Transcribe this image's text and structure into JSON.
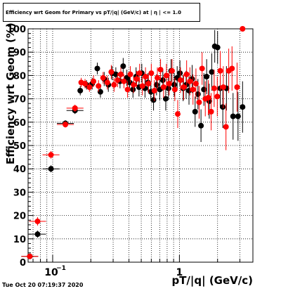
{
  "title": "Efficiency wrt Geom for Primary vs pT/|q| (GeV/c) at | η | <= 1.0",
  "timestamp": "Tue Oct 20 07:19:37 2020",
  "chart_data": {
    "type": "scatter",
    "title": "Efficiency wrt Geom for Primary vs pT/|q| (GeV/c) at | η | <= 1.0",
    "xlabel": "pT/|q| (GeV/c)",
    "ylabel": "Efficiency wrt Geom (%)",
    "xscale": "log",
    "xlim": [
      0.064,
      3.8
    ],
    "ylim": [
      0,
      100
    ],
    "xticklabels": [
      "10^-1",
      "1"
    ],
    "yticks": [
      0,
      10,
      20,
      30,
      40,
      50,
      60,
      70,
      80,
      90,
      100
    ],
    "grid": true,
    "colors": {
      "black_series": "#000000",
      "red_series": "#ff0000"
    },
    "series": [
      {
        "color": "black",
        "points": [
          {
            "x": 0.066,
            "y": 2.5,
            "err": 0.8
          },
          {
            "x": 0.076,
            "y": 12.0,
            "err": 1.5
          },
          {
            "x": 0.097,
            "y": 40.0,
            "err": 1.5
          },
          {
            "x": 0.126,
            "y": 59.5,
            "err": 1.3
          },
          {
            "x": 0.15,
            "y": 65.0,
            "err": 1.5
          },
          {
            "x": 0.165,
            "y": 73.5,
            "err": 2.0
          },
          {
            "x": 0.185,
            "y": 76.0,
            "err": 2.0
          },
          {
            "x": 0.205,
            "y": 76.5,
            "err": 2.5
          },
          {
            "x": 0.225,
            "y": 83.0,
            "err": 2.5
          },
          {
            "x": 0.238,
            "y": 73.0,
            "err": 2.5
          },
          {
            "x": 0.255,
            "y": 78.5,
            "err": 3.0
          },
          {
            "x": 0.275,
            "y": 76.0,
            "err": 3.0
          },
          {
            "x": 0.295,
            "y": 81.0,
            "err": 3.0
          },
          {
            "x": 0.315,
            "y": 80.5,
            "err": 3.0
          },
          {
            "x": 0.34,
            "y": 77.5,
            "err": 3.0
          },
          {
            "x": 0.36,
            "y": 84.0,
            "err": 3.5
          },
          {
            "x": 0.385,
            "y": 79.0,
            "err": 3.5
          },
          {
            "x": 0.405,
            "y": 77.0,
            "err": 3.5
          },
          {
            "x": 0.43,
            "y": 74.0,
            "err": 3.5
          },
          {
            "x": 0.455,
            "y": 79.5,
            "err": 4.0
          },
          {
            "x": 0.48,
            "y": 75.0,
            "err": 4.0
          },
          {
            "x": 0.505,
            "y": 81.0,
            "err": 4.0
          },
          {
            "x": 0.535,
            "y": 74.5,
            "err": 4.0
          },
          {
            "x": 0.565,
            "y": 77.0,
            "err": 4.0
          },
          {
            "x": 0.595,
            "y": 73.0,
            "err": 4.0
          },
          {
            "x": 0.625,
            "y": 69.5,
            "err": 4.5
          },
          {
            "x": 0.66,
            "y": 76.0,
            "err": 4.5
          },
          {
            "x": 0.7,
            "y": 74.0,
            "err": 4.5
          },
          {
            "x": 0.74,
            "y": 78.0,
            "err": 4.5
          },
          {
            "x": 0.78,
            "y": 70.0,
            "err": 5.0
          },
          {
            "x": 0.82,
            "y": 74.5,
            "err": 5.0
          },
          {
            "x": 0.86,
            "y": 82.0,
            "err": 5.0
          },
          {
            "x": 0.91,
            "y": 76.0,
            "err": 5.0
          },
          {
            "x": 0.96,
            "y": 79.0,
            "err": 5.0
          },
          {
            "x": 1.01,
            "y": 81.0,
            "err": 5.5
          },
          {
            "x": 1.07,
            "y": 74.5,
            "err": 5.5
          },
          {
            "x": 1.13,
            "y": 76.0,
            "err": 6.0
          },
          {
            "x": 1.19,
            "y": 73.5,
            "err": 6.0
          },
          {
            "x": 1.26,
            "y": 78.5,
            "err": 6.0
          },
          {
            "x": 1.33,
            "y": 64.5,
            "err": 6.5
          },
          {
            "x": 1.4,
            "y": 72.0,
            "err": 6.5
          },
          {
            "x": 1.48,
            "y": 58.5,
            "err": 7.0
          },
          {
            "x": 1.56,
            "y": 74.0,
            "err": 7.0
          },
          {
            "x": 1.64,
            "y": 79.5,
            "err": 7.5
          },
          {
            "x": 1.72,
            "y": 69.0,
            "err": 7.5
          },
          {
            "x": 1.8,
            "y": 81.5,
            "err": 8.0
          },
          {
            "x": 1.9,
            "y": 92.5,
            "err": 7.0
          },
          {
            "x": 2.0,
            "y": 92.0,
            "err": 7.0
          },
          {
            "x": 2.1,
            "y": 74.5,
            "err": 8.5
          },
          {
            "x": 2.2,
            "y": 66.5,
            "err": 9.0
          },
          {
            "x": 2.35,
            "y": 74.5,
            "err": 9.5
          },
          {
            "x": 2.65,
            "y": 62.5,
            "err": 10.0
          },
          {
            "x": 2.9,
            "y": 62.5,
            "err": 10.5
          },
          {
            "x": 3.15,
            "y": 66.5,
            "err": 11.0
          }
        ]
      },
      {
        "color": "red",
        "points": [
          {
            "x": 0.066,
            "y": 2.5,
            "err": 0.8
          },
          {
            "x": 0.076,
            "y": 17.5,
            "err": 1.8
          },
          {
            "x": 0.097,
            "y": 46.0,
            "err": 1.6
          },
          {
            "x": 0.126,
            "y": 59.0,
            "err": 1.3
          },
          {
            "x": 0.15,
            "y": 66.0,
            "err": 1.5
          },
          {
            "x": 0.168,
            "y": 77.0,
            "err": 2.0
          },
          {
            "x": 0.18,
            "y": 76.5,
            "err": 2.0
          },
          {
            "x": 0.195,
            "y": 75.0,
            "err": 2.0
          },
          {
            "x": 0.21,
            "y": 77.5,
            "err": 2.5
          },
          {
            "x": 0.23,
            "y": 75.5,
            "err": 2.5
          },
          {
            "x": 0.25,
            "y": 79.0,
            "err": 2.5
          },
          {
            "x": 0.27,
            "y": 77.0,
            "err": 3.0
          },
          {
            "x": 0.29,
            "y": 81.5,
            "err": 3.0
          },
          {
            "x": 0.305,
            "y": 76.0,
            "err": 3.0
          },
          {
            "x": 0.325,
            "y": 78.0,
            "err": 3.0
          },
          {
            "x": 0.345,
            "y": 80.5,
            "err": 3.0
          },
          {
            "x": 0.365,
            "y": 77.5,
            "err": 3.0
          },
          {
            "x": 0.39,
            "y": 74.0,
            "err": 3.5
          },
          {
            "x": 0.41,
            "y": 80.5,
            "err": 3.5
          },
          {
            "x": 0.435,
            "y": 76.0,
            "err": 3.5
          },
          {
            "x": 0.46,
            "y": 78.5,
            "err": 3.5
          },
          {
            "x": 0.485,
            "y": 81.0,
            "err": 4.0
          },
          {
            "x": 0.51,
            "y": 75.5,
            "err": 4.0
          },
          {
            "x": 0.54,
            "y": 79.5,
            "err": 4.0
          },
          {
            "x": 0.57,
            "y": 76.5,
            "err": 4.0
          },
          {
            "x": 0.6,
            "y": 81.0,
            "err": 4.0
          },
          {
            "x": 0.635,
            "y": 73.5,
            "err": 4.5
          },
          {
            "x": 0.67,
            "y": 79.0,
            "err": 4.5
          },
          {
            "x": 0.71,
            "y": 82.5,
            "err": 4.5
          },
          {
            "x": 0.75,
            "y": 75.0,
            "err": 4.5
          },
          {
            "x": 0.79,
            "y": 80.0,
            "err": 5.0
          },
          {
            "x": 0.83,
            "y": 76.5,
            "err": 5.0
          },
          {
            "x": 0.875,
            "y": 82.0,
            "err": 5.0
          },
          {
            "x": 0.92,
            "y": 74.0,
            "err": 5.0
          },
          {
            "x": 0.97,
            "y": 63.5,
            "err": 6.0
          },
          {
            "x": 1.02,
            "y": 78.0,
            "err": 5.5
          },
          {
            "x": 1.08,
            "y": 75.0,
            "err": 5.5
          },
          {
            "x": 1.14,
            "y": 80.5,
            "err": 6.0
          },
          {
            "x": 1.21,
            "y": 77.5,
            "err": 6.0
          },
          {
            "x": 1.28,
            "y": 74.0,
            "err": 6.5
          },
          {
            "x": 1.35,
            "y": 76.5,
            "err": 6.5
          },
          {
            "x": 1.43,
            "y": 68.5,
            "err": 7.0
          },
          {
            "x": 1.51,
            "y": 83.0,
            "err": 7.0
          },
          {
            "x": 1.6,
            "y": 70.0,
            "err": 7.5
          },
          {
            "x": 1.69,
            "y": 70.5,
            "err": 7.5
          },
          {
            "x": 1.78,
            "y": 64.5,
            "err": 8.0
          },
          {
            "x": 1.88,
            "y": 74.5,
            "err": 8.0
          },
          {
            "x": 1.99,
            "y": 71.0,
            "err": 8.5
          },
          {
            "x": 2.1,
            "y": 82.0,
            "err": 8.5
          },
          {
            "x": 2.22,
            "y": 75.0,
            "err": 9.0
          },
          {
            "x": 2.33,
            "y": 58.0,
            "err": 10.0
          },
          {
            "x": 2.45,
            "y": 82.0,
            "err": 9.5
          },
          {
            "x": 2.6,
            "y": 83.0,
            "err": 9.5
          },
          {
            "x": 2.85,
            "y": 75.0,
            "err": 10.5
          },
          {
            "x": 3.15,
            "y": 100.0,
            "err": 0.5
          }
        ]
      }
    ]
  }
}
